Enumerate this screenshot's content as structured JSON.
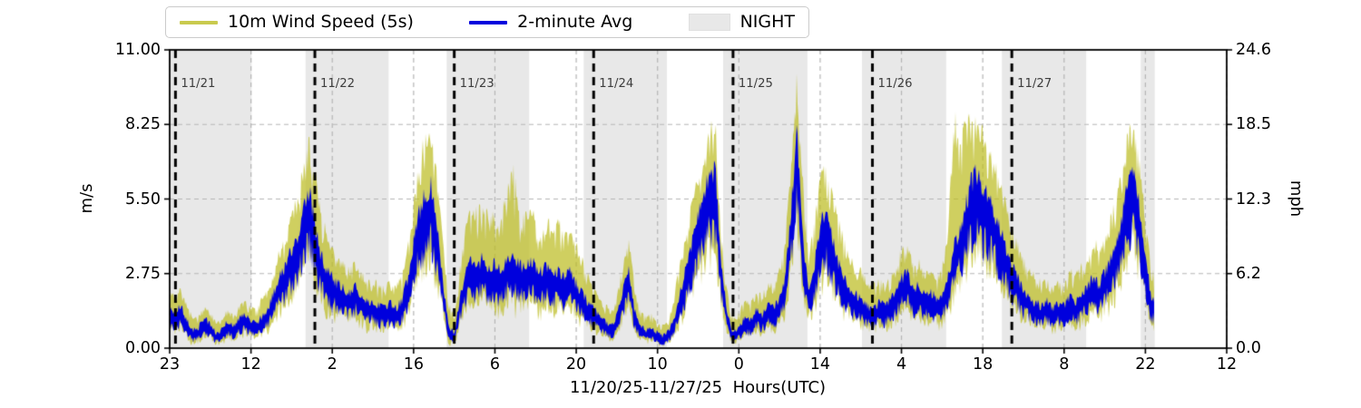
{
  "legend": {
    "items": [
      {
        "label": "10m Wind Speed (5s)",
        "type": "line",
        "color": "#bcbd22"
      },
      {
        "label": "2-minute Avg",
        "type": "line",
        "color": "#0000dd"
      },
      {
        "label": "NIGHT",
        "type": "patch",
        "color": "#e8e8e8"
      }
    ]
  },
  "axes": {
    "ylabel_left": "m/s",
    "ylabel_right": "mph",
    "xlabel": "11/20/25-11/27/25  Hours(UTC)"
  },
  "style": {
    "raw_color": "#bcbd22",
    "raw_alpha": 0.72,
    "avg_color": "#0000dd",
    "night_color": "#e8e8e8",
    "grid_color": "#b6b6b6",
    "dayline_color": "#000000",
    "date_label_color": "#3d3d3d",
    "spine_color": "#000000"
  },
  "noise_seed": 7,
  "chart_data": {
    "type": "line",
    "title": "",
    "xlabel": "11/20/25-11/27/25  Hours(UTC)",
    "ylabel_left": "m/s",
    "ylabel_right": "mph",
    "ylim": [
      0,
      11
    ],
    "ylim_right_mph": [
      0,
      24.6
    ],
    "grid": true,
    "legend_position": "top",
    "x_unit": "hours since first sample (first tick = 23:00 UTC 11/20/25)",
    "x_range_hours": [
      0,
      182
    ],
    "data_end_hour": 169.6,
    "hour_step": 1,
    "xticks": {
      "hours": [
        0,
        14,
        28,
        42,
        56,
        70,
        84,
        98,
        112,
        126,
        140,
        154,
        168,
        182
      ],
      "labels": [
        "23",
        "12",
        "2",
        "16",
        "6",
        "20",
        "10",
        "0",
        "14",
        "4",
        "18",
        "8",
        "22",
        "12"
      ]
    },
    "yticks": {
      "values": [
        0,
        2.75,
        5.5,
        8.25,
        11
      ],
      "labels_left": [
        "0.00",
        "2.75",
        "5.50",
        "8.25",
        "11.00"
      ],
      "labels_right": [
        "0.0",
        "6.2",
        "12.3",
        "18.5",
        "24.6"
      ]
    },
    "day_boundaries": [
      {
        "hour": 1,
        "label": "11/21"
      },
      {
        "hour": 25,
        "label": "11/22"
      },
      {
        "hour": 49,
        "label": "11/23"
      },
      {
        "hour": 73,
        "label": "11/24"
      },
      {
        "hour": 97,
        "label": "11/25"
      },
      {
        "hour": 121,
        "label": "11/26"
      },
      {
        "hour": 145,
        "label": "11/27"
      }
    ],
    "night_spans_hours": [
      [
        0,
        14.1
      ],
      [
        23.4,
        37.7
      ],
      [
        47.7,
        61.9
      ],
      [
        71.3,
        85.6
      ],
      [
        95.3,
        109.8
      ],
      [
        119.2,
        133.7
      ],
      [
        143.3,
        157.8
      ],
      [
        167.2,
        169.6
      ]
    ],
    "series": [
      {
        "name": "2-minute Avg",
        "color": "#0000dd",
        "role": "average wind speed (m/s), hourly estimates",
        "values": [
          1.2,
          1.1,
          1.3,
          0.8,
          0.5,
          0.6,
          0.9,
          0.7,
          0.4,
          0.5,
          0.8,
          0.6,
          0.9,
          1.0,
          0.8,
          0.7,
          1.0,
          1.2,
          1.8,
          2.3,
          2.6,
          3.2,
          3.6,
          4.6,
          5.2,
          4.0,
          3.0,
          2.5,
          2.2,
          2.0,
          1.9,
          1.7,
          1.9,
          1.6,
          1.4,
          1.5,
          1.3,
          1.2,
          1.4,
          1.2,
          1.5,
          2.2,
          3.4,
          4.4,
          5.0,
          5.2,
          4.0,
          2.2,
          0.6,
          0.4,
          1.6,
          2.4,
          2.8,
          2.6,
          2.9,
          2.5,
          2.7,
          2.4,
          2.8,
          3.0,
          2.7,
          2.5,
          2.8,
          2.6,
          2.4,
          2.6,
          2.3,
          2.5,
          2.2,
          2.4,
          2.0,
          1.7,
          1.4,
          1.2,
          1.0,
          0.8,
          0.6,
          1.0,
          1.8,
          2.6,
          1.2,
          0.7,
          0.5,
          0.6,
          0.4,
          0.3,
          0.5,
          1.0,
          1.8,
          2.6,
          3.4,
          4.2,
          5.0,
          5.8,
          5.6,
          2.6,
          1.0,
          0.4,
          0.6,
          0.9,
          0.8,
          1.2,
          1.0,
          1.4,
          1.2,
          1.6,
          2.2,
          4.5,
          7.3,
          3.5,
          1.8,
          2.6,
          4.0,
          4.4,
          3.6,
          2.8,
          2.2,
          1.9,
          1.7,
          1.5,
          1.3,
          1.2,
          1.4,
          1.3,
          1.5,
          1.7,
          2.2,
          2.4,
          1.8,
          2.0,
          1.6,
          1.8,
          1.5,
          1.7,
          2.2,
          3.2,
          3.8,
          4.6,
          5.4,
          5.6,
          5.2,
          4.8,
          4.4,
          3.8,
          3.2,
          2.6,
          2.2,
          1.8,
          1.6,
          1.4,
          1.3,
          1.5,
          1.2,
          1.4,
          1.3,
          1.6,
          1.4,
          1.7,
          1.9,
          2.2,
          2.0,
          2.4,
          2.8,
          3.4,
          4.2,
          5.4,
          5.8,
          4.6,
          3.0,
          1.5
        ]
      },
      {
        "name": "10m Wind Speed (5s)",
        "color": "#bcbd22",
        "role": "raw 5-second wind speed envelope maximum (m/s), hourly estimates",
        "values": [
          2.2,
          2.0,
          2.3,
          1.6,
          1.2,
          1.3,
          1.6,
          1.4,
          1.0,
          1.1,
          1.5,
          1.2,
          1.6,
          1.8,
          1.6,
          1.5,
          2.0,
          2.2,
          3.0,
          3.8,
          4.4,
          5.2,
          5.8,
          6.9,
          8.0,
          6.8,
          5.3,
          4.6,
          3.8,
          3.4,
          3.2,
          3.0,
          3.3,
          2.9,
          2.6,
          2.7,
          2.4,
          2.3,
          2.6,
          2.4,
          2.8,
          4.0,
          5.6,
          7.0,
          8.2,
          8.0,
          6.8,
          4.5,
          1.8,
          1.2,
          3.2,
          4.6,
          5.4,
          5.2,
          5.6,
          5.0,
          5.3,
          4.8,
          6.2,
          7.5,
          5.5,
          5.2,
          5.4,
          5.0,
          4.8,
          5.0,
          4.6,
          4.8,
          4.4,
          4.6,
          4.0,
          3.5,
          2.8,
          2.4,
          2.0,
          1.7,
          1.4,
          2.0,
          3.2,
          4.4,
          2.4,
          1.5,
          1.2,
          1.3,
          1.0,
          0.9,
          1.2,
          2.2,
          3.4,
          4.6,
          5.6,
          6.6,
          7.6,
          8.7,
          8.6,
          4.4,
          2.2,
          1.2,
          1.4,
          1.8,
          1.7,
          2.2,
          2.0,
          2.6,
          2.4,
          3.0,
          4.2,
          7.5,
          10.3,
          6.5,
          3.6,
          4.8,
          6.6,
          6.9,
          6.0,
          5.0,
          4.2,
          3.6,
          3.2,
          3.0,
          2.6,
          2.4,
          2.6,
          2.5,
          2.8,
          3.0,
          3.8,
          4.0,
          3.2,
          3.6,
          3.0,
          3.2,
          2.8,
          3.2,
          4.2,
          9.3,
          8.0,
          8.6,
          8.9,
          8.6,
          8.2,
          7.6,
          7.2,
          6.4,
          5.6,
          4.6,
          4.0,
          3.4,
          3.0,
          2.8,
          2.6,
          2.8,
          2.4,
          2.6,
          2.5,
          3.0,
          2.8,
          3.2,
          3.6,
          4.2,
          3.8,
          4.4,
          5.0,
          5.8,
          6.8,
          8.3,
          8.5,
          7.2,
          5.2,
          3.0
        ]
      }
    ]
  }
}
